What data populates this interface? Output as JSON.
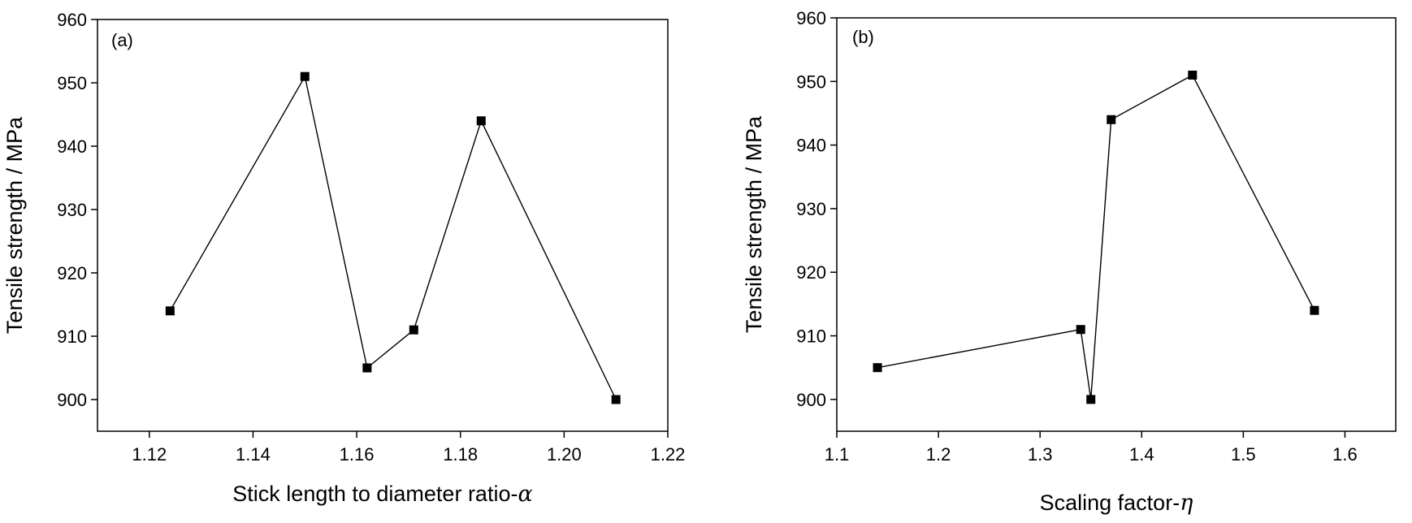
{
  "chart_data": [
    {
      "type": "line",
      "panel_label": "(a)",
      "title": "",
      "xlabel": "Stick length to diameter ratio-",
      "xlabel_symbol": "α",
      "ylabel": "Tensile strength / MPa",
      "xlim": [
        1.11,
        1.22
      ],
      "ylim": [
        895,
        960
      ],
      "xticks": [
        1.12,
        1.14,
        1.16,
        1.18,
        1.2,
        1.22
      ],
      "xtick_labels": [
        "1.12",
        "1.14",
        "1.16",
        "1.18",
        "1.20",
        "1.22"
      ],
      "yticks": [
        900,
        910,
        920,
        930,
        940,
        950,
        960
      ],
      "ytick_labels": [
        "900",
        "910",
        "920",
        "930",
        "940",
        "950",
        "960"
      ],
      "grid": false,
      "marker": "square",
      "points": [
        {
          "x": 1.124,
          "y": 914
        },
        {
          "x": 1.15,
          "y": 951
        },
        {
          "x": 1.162,
          "y": 905
        },
        {
          "x": 1.171,
          "y": 911
        },
        {
          "x": 1.184,
          "y": 944
        },
        {
          "x": 1.21,
          "y": 900
        }
      ]
    },
    {
      "type": "line",
      "panel_label": "(b)",
      "title": "",
      "xlabel": "Scaling factor-",
      "xlabel_symbol": "η",
      "ylabel": "Tensile strength / MPa",
      "xlim": [
        1.1,
        1.65
      ],
      "ylim": [
        895,
        960
      ],
      "xticks": [
        1.1,
        1.2,
        1.3,
        1.4,
        1.5,
        1.6
      ],
      "xtick_labels": [
        "1.1",
        "1.2",
        "1.3",
        "1.4",
        "1.5",
        "1.6"
      ],
      "yticks": [
        900,
        910,
        920,
        930,
        940,
        950,
        960
      ],
      "ytick_labels": [
        "900",
        "910",
        "920",
        "930",
        "940",
        "950",
        "960"
      ],
      "grid": false,
      "marker": "square",
      "points": [
        {
          "x": 1.14,
          "y": 905
        },
        {
          "x": 1.34,
          "y": 911
        },
        {
          "x": 1.35,
          "y": 900
        },
        {
          "x": 1.37,
          "y": 944
        },
        {
          "x": 1.45,
          "y": 951
        },
        {
          "x": 1.57,
          "y": 914
        }
      ]
    }
  ]
}
